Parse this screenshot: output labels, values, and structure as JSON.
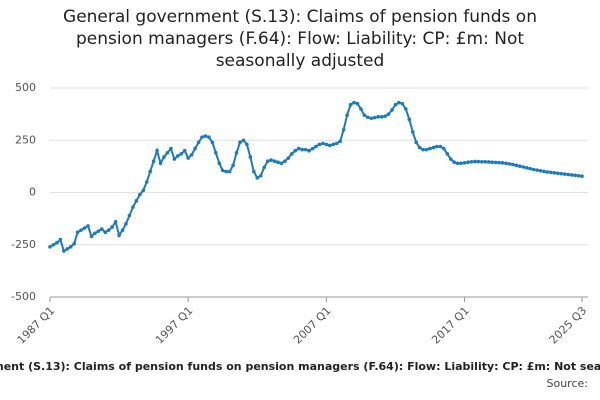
{
  "chart_data": {
    "type": "line",
    "title": "General government (S.13): Claims of pension funds on pension managers (F.64): Flow: Liability: CP: £m: Not seasonally adjusted",
    "source": "Source:",
    "categories": [
      "1987 Q1",
      null,
      null,
      null,
      null,
      null,
      null,
      null,
      null,
      null,
      null,
      null,
      null,
      null,
      null,
      null,
      null,
      null,
      null,
      null,
      null,
      null,
      null,
      null,
      null,
      null,
      null,
      null,
      null,
      null,
      null,
      null,
      null,
      null,
      null,
      null,
      null,
      null,
      null,
      null,
      "1997 Q1",
      null,
      null,
      null,
      null,
      null,
      null,
      null,
      null,
      null,
      null,
      null,
      null,
      null,
      null,
      null,
      null,
      null,
      null,
      null,
      null,
      null,
      null,
      null,
      null,
      null,
      null,
      null,
      null,
      null,
      null,
      null,
      null,
      null,
      null,
      null,
      null,
      null,
      null,
      null,
      "2007 Q1",
      null,
      null,
      null,
      null,
      null,
      null,
      null,
      null,
      null,
      null,
      null,
      null,
      null,
      null,
      null,
      null,
      null,
      null,
      null,
      null,
      null,
      null,
      null,
      null,
      null,
      null,
      null,
      null,
      null,
      null,
      null,
      null,
      null,
      null,
      null,
      null,
      null,
      null,
      null,
      "2017 Q1",
      null,
      null,
      null,
      null,
      null,
      null,
      null,
      null,
      null,
      null,
      null,
      null,
      null,
      null,
      null,
      null,
      null,
      null,
      null,
      null,
      null,
      null,
      null,
      null,
      null,
      null,
      null,
      null,
      null,
      null,
      null,
      null,
      null,
      "2025 Q3"
    ],
    "series": [
      {
        "name": "General government (S.13): Claims of pension funds on pension managers (F.64): Flow: Liability: CP: £m: Not seasonally adjusted",
        "color": "#1b7bbd",
        "values": [
          -260,
          -250,
          -240,
          -225,
          -280,
          -270,
          -260,
          -245,
          -190,
          -180,
          -170,
          -160,
          -210,
          -195,
          -185,
          -175,
          -190,
          -180,
          -165,
          -140,
          -205,
          -180,
          -150,
          -110,
          -70,
          -40,
          -10,
          10,
          50,
          100,
          150,
          200,
          140,
          170,
          190,
          210,
          160,
          175,
          185,
          200,
          165,
          180,
          210,
          240,
          265,
          270,
          265,
          240,
          190,
          140,
          105,
          100,
          100,
          130,
          190,
          240,
          250,
          230,
          170,
          100,
          70,
          80,
          120,
          150,
          155,
          150,
          145,
          140,
          150,
          165,
          185,
          200,
          210,
          205,
          205,
          200,
          210,
          220,
          230,
          235,
          230,
          225,
          230,
          235,
          245,
          300,
          370,
          420,
          430,
          425,
          400,
          370,
          360,
          355,
          358,
          362,
          362,
          365,
          375,
          395,
          420,
          430,
          425,
          400,
          350,
          290,
          240,
          215,
          205,
          205,
          210,
          215,
          220,
          220,
          210,
          185,
          160,
          145,
          140,
          140,
          142,
          145,
          147,
          148,
          148,
          147,
          147,
          146,
          145,
          144,
          143,
          142,
          140,
          137,
          134,
          130,
          126,
          122,
          118,
          114,
          110,
          107,
          104,
          101,
          98,
          96,
          94,
          92,
          90,
          88,
          86,
          84,
          82,
          80,
          78
        ]
      }
    ],
    "ylim": [
      -500,
      500
    ],
    "yticks": [
      500,
      250,
      0,
      -250,
      -500
    ],
    "grid": true
  }
}
